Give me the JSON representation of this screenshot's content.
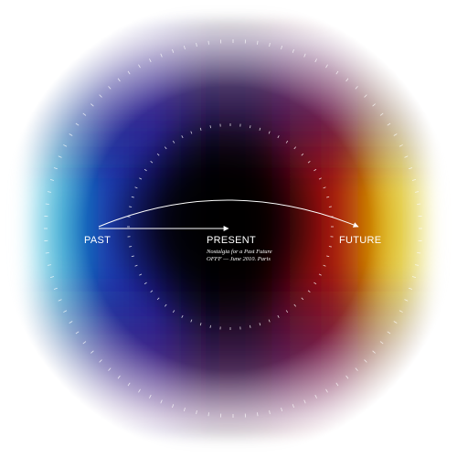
{
  "labels": {
    "past": "PAST",
    "present": "PRESENT",
    "future": "FUTURE"
  },
  "caption": {
    "line1": "Nostalgia for a Past Future",
    "line2": "OFFF — June 2010. Paris"
  },
  "colors": {
    "background": "#ffffff",
    "cyan": "#16a9cf",
    "blue": "#1c1f9a",
    "core": "#000000",
    "red": "#8c0a0c",
    "yellow": "#d9c400",
    "tick_color": "#ffffff",
    "line_color": "#ffffff"
  },
  "icons": {
    "arrow": "arrowhead-icon"
  }
}
